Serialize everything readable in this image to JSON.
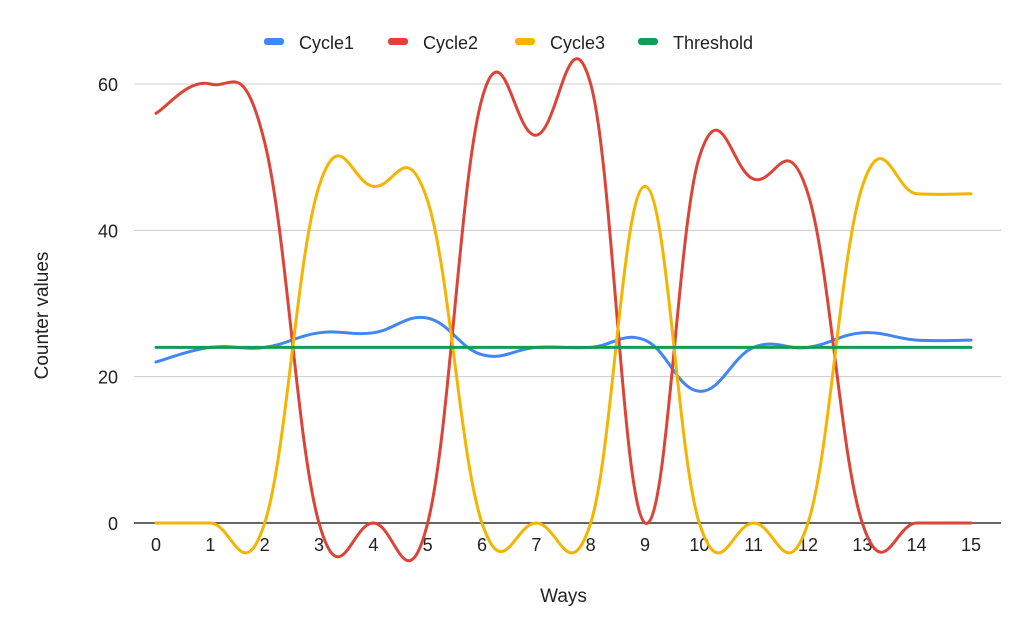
{
  "chart_data": {
    "type": "line",
    "title": "",
    "xlabel": "Ways",
    "ylabel": "Counter values",
    "x": [
      0,
      1,
      2,
      3,
      4,
      5,
      6,
      7,
      8,
      9,
      10,
      11,
      12,
      13,
      14,
      15
    ],
    "x_tick_labels": [
      "0",
      "1",
      "2",
      "3",
      "4",
      "5",
      "6",
      "7",
      "8",
      "9",
      "10",
      "11",
      "12",
      "13",
      "14",
      "15"
    ],
    "y_tick_labels": [
      "0",
      "20",
      "40",
      "60"
    ],
    "y_ticks": [
      0,
      20,
      40,
      60
    ],
    "ylim": [
      0,
      60
    ],
    "grid": true,
    "legend_position": "top",
    "series": [
      {
        "name": "Cycle1",
        "color": "#4285F4",
        "values": [
          22,
          24,
          24,
          26,
          26,
          28,
          23,
          24,
          24,
          25,
          18,
          24,
          24,
          26,
          25,
          25
        ]
      },
      {
        "name": "Cycle2",
        "color": "#DB4437",
        "values": [
          56,
          60,
          52,
          0,
          0,
          0,
          58,
          53,
          60,
          0,
          50,
          47,
          45,
          0,
          0,
          0
        ]
      },
      {
        "name": "Cycle3",
        "color": "#F4B400",
        "values": [
          0,
          0,
          0,
          46,
          46,
          44,
          0,
          0,
          0,
          46,
          0,
          0,
          0,
          46,
          45,
          45
        ]
      },
      {
        "name": "Threshold",
        "color": "#0F9D58",
        "values": [
          24,
          24,
          24,
          24,
          24,
          24,
          24,
          24,
          24,
          24,
          24,
          24,
          24,
          24,
          24,
          24
        ]
      }
    ]
  }
}
